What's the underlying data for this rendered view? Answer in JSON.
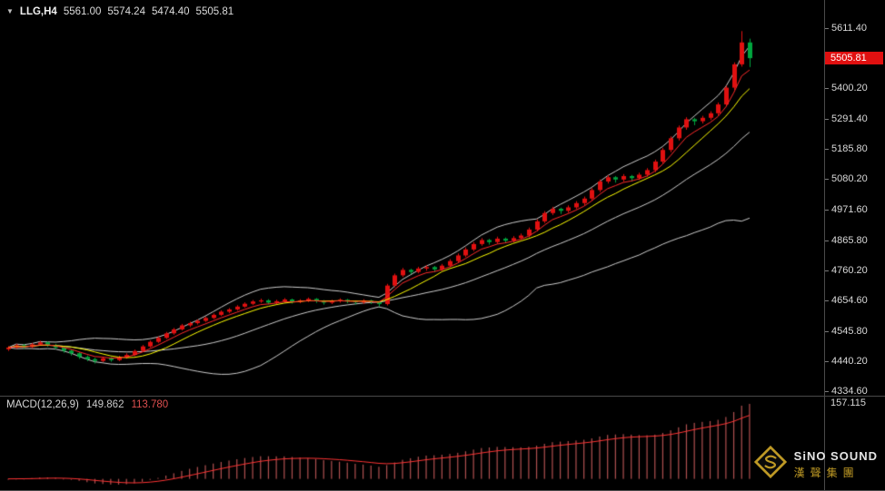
{
  "icons": {
    "symbol_dropdown": "▼"
  },
  "quote_bar": {
    "symbol_period": "LLG,H4",
    "open": "5561.00",
    "high": "5574.24",
    "low": "5474.40",
    "close": "5505.81"
  },
  "price_axis": {
    "labels": [
      "5611.40",
      "5400.20",
      "5291.40",
      "5185.80",
      "5080.20",
      "4971.60",
      "4865.80",
      "4760.20",
      "4654.60",
      "4545.80",
      "4440.20",
      "4334.60"
    ],
    "current_price": "5505.81"
  },
  "macd_panel": {
    "label": "MACD(12,26,9)",
    "value_main": "149.862",
    "value_signal": "113.780",
    "axis_label_top": "157.115"
  },
  "watermark": {
    "brand": "SiNO SOUND",
    "brand_cn": "漢聲集團"
  },
  "colors": {
    "background": "#000000",
    "bull": "#e01010",
    "bear": "#00a63e",
    "bollinger": "#cdcdcd",
    "ma_fast": "#ffff00",
    "ma_signal_red": "#ff2a2a",
    "macd_histogram": "#b05050",
    "macd_signal": "#ff3333",
    "price_tag_bg": "#e01010",
    "axis_text": "#d8d8d8",
    "accent_gold": "#c9a227"
  },
  "chart_data": {
    "type": "candlestick",
    "symbol": "LLG",
    "timeframe": "H4",
    "title": "LLG,H4",
    "ohlc_readout": {
      "open": 5561.0,
      "high": 5574.24,
      "low": 5474.4,
      "close": 5505.81
    },
    "ylim": [
      4334.6,
      5611.4
    ],
    "y_axis_ticks": [
      5611.4,
      5400.2,
      5291.4,
      5185.8,
      5080.2,
      4971.6,
      4865.8,
      4760.2,
      4654.6,
      4545.8,
      4440.2,
      4334.6
    ],
    "grid": false,
    "overlays": [
      {
        "name": "Bollinger Bands",
        "period": 20,
        "deviation": 2,
        "color": "#cdcdcd"
      },
      {
        "name": "SMA",
        "period": 8,
        "color": "#ffff00"
      },
      {
        "name": "EMA",
        "period": 5,
        "color": "#ff2a2a"
      }
    ],
    "indicator": {
      "name": "MACD",
      "fast": 12,
      "slow": 26,
      "signal": 9,
      "last_main": 149.862,
      "last_signal": 113.78,
      "axis_max": 157.115
    },
    "candles": [
      [
        4482,
        4493,
        4476,
        4488
      ],
      [
        4488,
        4501,
        4484,
        4496
      ],
      [
        4496,
        4500,
        4483,
        4490
      ],
      [
        4490,
        4504,
        4486,
        4499
      ],
      [
        4499,
        4512,
        4495,
        4506
      ],
      [
        4506,
        4509,
        4491,
        4497
      ],
      [
        4497,
        4501,
        4482,
        4488
      ],
      [
        4488,
        4492,
        4470,
        4477
      ],
      [
        4477,
        4481,
        4460,
        4468
      ],
      [
        4468,
        4472,
        4448,
        4455
      ],
      [
        4455,
        4460,
        4440,
        4447
      ],
      [
        4447,
        4452,
        4432,
        4441
      ],
      [
        4441,
        4456,
        4437,
        4450
      ],
      [
        4450,
        4454,
        4438,
        4444
      ],
      [
        4444,
        4459,
        4440,
        4453
      ],
      [
        4453,
        4468,
        4449,
        4462
      ],
      [
        4462,
        4481,
        4458,
        4476
      ],
      [
        4476,
        4497,
        4472,
        4492
      ],
      [
        4492,
        4513,
        4488,
        4508
      ],
      [
        4508,
        4527,
        4504,
        4522
      ],
      [
        4522,
        4543,
        4518,
        4538
      ],
      [
        4538,
        4557,
        4533,
        4552
      ],
      [
        4552,
        4571,
        4548,
        4566
      ],
      [
        4566,
        4579,
        4560,
        4574
      ],
      [
        4574,
        4587,
        4569,
        4582
      ],
      [
        4582,
        4597,
        4578,
        4592
      ],
      [
        4592,
        4608,
        4588,
        4603
      ],
      [
        4603,
        4619,
        4599,
        4614
      ],
      [
        4614,
        4627,
        4609,
        4622
      ],
      [
        4622,
        4637,
        4618,
        4632
      ],
      [
        4632,
        4647,
        4628,
        4642
      ],
      [
        4642,
        4655,
        4638,
        4650
      ],
      [
        4650,
        4660,
        4645,
        4654
      ],
      [
        4654,
        4658,
        4640,
        4646
      ],
      [
        4646,
        4656,
        4641,
        4651
      ],
      [
        4651,
        4662,
        4646,
        4657
      ],
      [
        4657,
        4660,
        4643,
        4649
      ],
      [
        4649,
        4658,
        4644,
        4653
      ],
      [
        4653,
        4664,
        4648,
        4659
      ],
      [
        4659,
        4662,
        4645,
        4651
      ],
      [
        4651,
        4655,
        4639,
        4646
      ],
      [
        4646,
        4656,
        4641,
        4651
      ],
      [
        4651,
        4661,
        4646,
        4656
      ],
      [
        4656,
        4659,
        4644,
        4650
      ],
      [
        4650,
        4653,
        4640,
        4647
      ],
      [
        4647,
        4658,
        4642,
        4653
      ],
      [
        4653,
        4656,
        4641,
        4648
      ],
      [
        4648,
        4651,
        4632,
        4641
      ],
      [
        4641,
        4712,
        4636,
        4706
      ],
      [
        4706,
        4748,
        4700,
        4742
      ],
      [
        4742,
        4768,
        4736,
        4761
      ],
      [
        4761,
        4765,
        4746,
        4754
      ],
      [
        4754,
        4772,
        4749,
        4766
      ],
      [
        4766,
        4778,
        4758,
        4771
      ],
      [
        4771,
        4775,
        4754,
        4763
      ],
      [
        4763,
        4782,
        4757,
        4776
      ],
      [
        4776,
        4799,
        4771,
        4792
      ],
      [
        4792,
        4819,
        4787,
        4812
      ],
      [
        4812,
        4840,
        4806,
        4833
      ],
      [
        4833,
        4859,
        4827,
        4852
      ],
      [
        4852,
        4873,
        4846,
        4866
      ],
      [
        4866,
        4870,
        4850,
        4859
      ],
      [
        4859,
        4878,
        4853,
        4871
      ],
      [
        4871,
        4875,
        4855,
        4864
      ],
      [
        4864,
        4880,
        4858,
        4873
      ],
      [
        4873,
        4889,
        4867,
        4882
      ],
      [
        4882,
        4910,
        4876,
        4903
      ],
      [
        4903,
        4939,
        4897,
        4932
      ],
      [
        4932,
        4968,
        4926,
        4961
      ],
      [
        4961,
        4983,
        4954,
        4976
      ],
      [
        4976,
        4980,
        4958,
        4969
      ],
      [
        4969,
        4988,
        4962,
        4981
      ],
      [
        4981,
        5003,
        4975,
        4996
      ],
      [
        4996,
        5019,
        4989,
        5012
      ],
      [
        5012,
        5049,
        5005,
        5042
      ],
      [
        5042,
        5079,
        5035,
        5072
      ],
      [
        5072,
        5094,
        5065,
        5087
      ],
      [
        5087,
        5091,
        5068,
        5079
      ],
      [
        5079,
        5098,
        5072,
        5091
      ],
      [
        5091,
        5095,
        5072,
        5084
      ],
      [
        5084,
        5103,
        5077,
        5096
      ],
      [
        5096,
        5119,
        5089,
        5112
      ],
      [
        5112,
        5149,
        5105,
        5142
      ],
      [
        5142,
        5190,
        5135,
        5183
      ],
      [
        5183,
        5231,
        5175,
        5224
      ],
      [
        5224,
        5269,
        5216,
        5262
      ],
      [
        5262,
        5298,
        5254,
        5291
      ],
      [
        5291,
        5296,
        5270,
        5284
      ],
      [
        5284,
        5303,
        5276,
        5296
      ],
      [
        5296,
        5319,
        5288,
        5312
      ],
      [
        5312,
        5350,
        5304,
        5343
      ],
      [
        5343,
        5409,
        5336,
        5402
      ],
      [
        5402,
        5491,
        5394,
        5484
      ],
      [
        5484,
        5601,
        5476,
        5561
      ],
      [
        5561,
        5574.24,
        5474.4,
        5505.81
      ]
    ]
  }
}
